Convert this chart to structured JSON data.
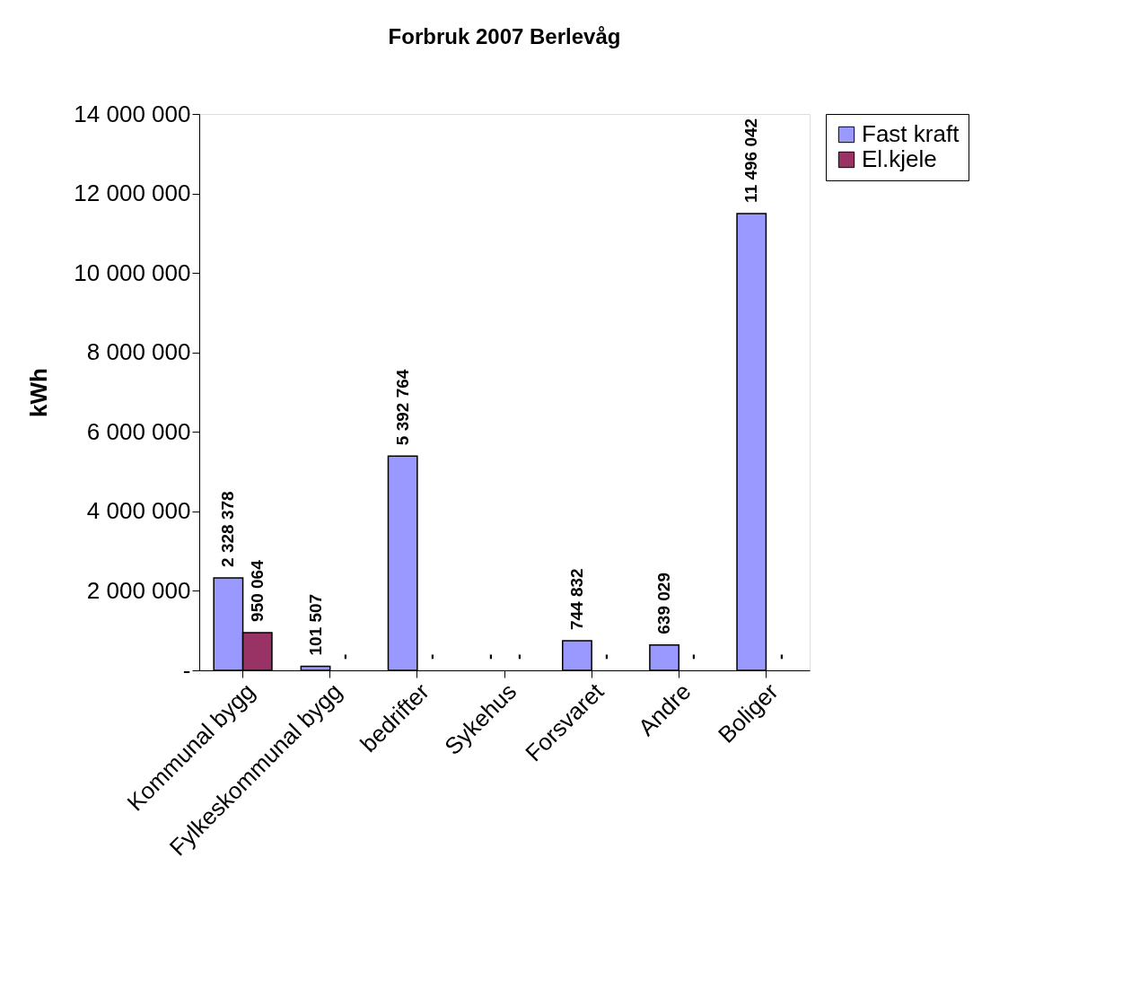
{
  "chart_data": {
    "type": "bar",
    "title": "Forbruk 2007 Berlevåg",
    "ylabel": "kWh",
    "categories": [
      "Kommunal bygg",
      "Fylkeskommunal bygg",
      "bedrifter",
      "Sykehus",
      "Forsvaret",
      "Andre",
      "Boliger"
    ],
    "series": [
      {
        "name": "Fast kraft",
        "color": "#9999ff",
        "values": [
          2328378,
          101507,
          5392764,
          0,
          744832,
          639029,
          11496042
        ],
        "value_labels": [
          "2 328 378",
          "101 507",
          "5 392 764",
          "-",
          "744 832",
          "639 029",
          "11 496 042"
        ]
      },
      {
        "name": "El.kjele",
        "color": "#993366",
        "values": [
          950064,
          0,
          0,
          0,
          0,
          0,
          0
        ],
        "value_labels": [
          "950 064",
          "-",
          "-",
          "-",
          "-",
          "-",
          "-"
        ]
      }
    ],
    "ylim": [
      0,
      14000000
    ],
    "yticks": [
      {
        "value": 0,
        "label": "-"
      },
      {
        "value": 2000000,
        "label": "2 000 000"
      },
      {
        "value": 4000000,
        "label": "4 000 000"
      },
      {
        "value": 6000000,
        "label": "6 000 000"
      },
      {
        "value": 8000000,
        "label": "8 000 000"
      },
      {
        "value": 10000000,
        "label": "10 000 000"
      },
      {
        "value": 12000000,
        "label": "12 000 000"
      },
      {
        "value": 14000000,
        "label": "14 000 000"
      }
    ],
    "grid": false,
    "legend": "right"
  }
}
